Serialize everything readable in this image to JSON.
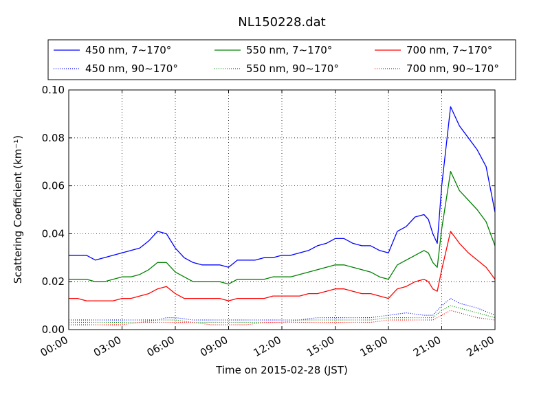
{
  "chart_data": {
    "type": "line",
    "title": "NL150228.dat",
    "xlabel": "Time on 2015-02-28 (JST)",
    "ylabel": "Scattering Coefficient (km⁻¹)",
    "xlim": [
      "00:00",
      "24:00"
    ],
    "ylim": [
      0.0,
      0.1
    ],
    "x_ticks": [
      "00:00",
      "03:00",
      "06:00",
      "09:00",
      "12:00",
      "15:00",
      "18:00",
      "21:00",
      "24:00"
    ],
    "y_ticks": [
      "0.00",
      "0.02",
      "0.04",
      "0.06",
      "0.08",
      "0.10"
    ],
    "grid": true,
    "legend_position": "top, above plot, 3 columns",
    "series": [
      {
        "name": "450 nm, 7∼170°",
        "color": "#0000ff",
        "style": "solid",
        "x": [
          "00:00",
          "00:30",
          "01:00",
          "01:30",
          "02:00",
          "02:30",
          "03:00",
          "03:30",
          "04:00",
          "04:30",
          "05:00",
          "05:30",
          "06:00",
          "06:30",
          "07:00",
          "07:30",
          "08:00",
          "08:30",
          "09:00",
          "09:30",
          "10:00",
          "10:30",
          "11:00",
          "11:30",
          "12:00",
          "12:30",
          "13:00",
          "13:30",
          "14:00",
          "14:30",
          "15:00",
          "15:30",
          "16:00",
          "16:30",
          "17:00",
          "17:30",
          "18:00",
          "18:30",
          "19:00",
          "19:30",
          "20:00",
          "20:15",
          "20:30",
          "20:45",
          "21:00",
          "21:30",
          "22:00",
          "22:30",
          "23:00",
          "23:30",
          "24:00"
        ],
        "y": [
          0.031,
          0.031,
          0.031,
          0.029,
          0.03,
          0.031,
          0.032,
          0.033,
          0.034,
          0.037,
          0.041,
          0.04,
          0.034,
          0.03,
          0.028,
          0.027,
          0.027,
          0.027,
          0.026,
          0.029,
          0.029,
          0.029,
          0.03,
          0.03,
          0.031,
          0.031,
          0.032,
          0.033,
          0.035,
          0.036,
          0.038,
          0.038,
          0.036,
          0.035,
          0.035,
          0.033,
          0.032,
          0.041,
          0.043,
          0.047,
          0.048,
          0.046,
          0.04,
          0.036,
          0.06,
          0.093,
          0.085,
          0.08,
          0.075,
          0.068,
          0.049
        ]
      },
      {
        "name": "550 nm, 7∼170°",
        "color": "#008000",
        "style": "solid",
        "x": [
          "00:00",
          "00:30",
          "01:00",
          "01:30",
          "02:00",
          "02:30",
          "03:00",
          "03:30",
          "04:00",
          "04:30",
          "05:00",
          "05:30",
          "06:00",
          "06:30",
          "07:00",
          "07:30",
          "08:00",
          "08:30",
          "09:00",
          "09:30",
          "10:00",
          "10:30",
          "11:00",
          "11:30",
          "12:00",
          "12:30",
          "13:00",
          "13:30",
          "14:00",
          "14:30",
          "15:00",
          "15:30",
          "16:00",
          "16:30",
          "17:00",
          "17:30",
          "18:00",
          "18:30",
          "19:00",
          "19:30",
          "20:00",
          "20:15",
          "20:30",
          "20:45",
          "21:00",
          "21:30",
          "22:00",
          "22:30",
          "23:00",
          "23:30",
          "24:00"
        ],
        "y": [
          0.021,
          0.021,
          0.021,
          0.02,
          0.02,
          0.021,
          0.022,
          0.022,
          0.023,
          0.025,
          0.028,
          0.028,
          0.024,
          0.022,
          0.02,
          0.02,
          0.02,
          0.02,
          0.019,
          0.021,
          0.021,
          0.021,
          0.021,
          0.022,
          0.022,
          0.022,
          0.023,
          0.024,
          0.025,
          0.026,
          0.027,
          0.027,
          0.026,
          0.025,
          0.024,
          0.022,
          0.021,
          0.027,
          0.029,
          0.031,
          0.033,
          0.032,
          0.028,
          0.026,
          0.042,
          0.066,
          0.058,
          0.054,
          0.05,
          0.045,
          0.035
        ]
      },
      {
        "name": "700 nm, 7∼170°",
        "color": "#ff0000",
        "style": "solid",
        "x": [
          "00:00",
          "00:30",
          "01:00",
          "01:30",
          "02:00",
          "02:30",
          "03:00",
          "03:30",
          "04:00",
          "04:30",
          "05:00",
          "05:30",
          "06:00",
          "06:30",
          "07:00",
          "07:30",
          "08:00",
          "08:30",
          "09:00",
          "09:30",
          "10:00",
          "10:30",
          "11:00",
          "11:30",
          "12:00",
          "12:30",
          "13:00",
          "13:30",
          "14:00",
          "14:30",
          "15:00",
          "15:30",
          "16:00",
          "16:30",
          "17:00",
          "17:30",
          "18:00",
          "18:30",
          "19:00",
          "19:30",
          "20:00",
          "20:15",
          "20:30",
          "20:45",
          "21:00",
          "21:30",
          "22:00",
          "22:30",
          "23:00",
          "23:30",
          "24:00"
        ],
        "y": [
          0.013,
          0.013,
          0.012,
          0.012,
          0.012,
          0.012,
          0.013,
          0.013,
          0.014,
          0.015,
          0.017,
          0.018,
          0.015,
          0.013,
          0.013,
          0.013,
          0.013,
          0.013,
          0.012,
          0.013,
          0.013,
          0.013,
          0.013,
          0.014,
          0.014,
          0.014,
          0.014,
          0.015,
          0.015,
          0.016,
          0.017,
          0.017,
          0.016,
          0.015,
          0.015,
          0.014,
          0.013,
          0.017,
          0.018,
          0.02,
          0.021,
          0.02,
          0.017,
          0.016,
          0.025,
          0.041,
          0.036,
          0.032,
          0.029,
          0.026,
          0.021
        ]
      },
      {
        "name": "450 nm, 90∼170°",
        "color": "#0000ff",
        "style": "dotted",
        "x": [
          "00:00",
          "01:00",
          "02:00",
          "03:00",
          "04:00",
          "05:00",
          "05:30",
          "06:00",
          "07:00",
          "08:00",
          "09:00",
          "10:00",
          "11:00",
          "12:00",
          "13:00",
          "14:00",
          "15:00",
          "16:00",
          "17:00",
          "18:00",
          "19:00",
          "20:00",
          "20:30",
          "21:00",
          "21:30",
          "22:00",
          "23:00",
          "24:00"
        ],
        "y": [
          0.004,
          0.004,
          0.004,
          0.004,
          0.004,
          0.004,
          0.005,
          0.005,
          0.004,
          0.004,
          0.004,
          0.004,
          0.004,
          0.004,
          0.004,
          0.005,
          0.005,
          0.005,
          0.005,
          0.006,
          0.007,
          0.006,
          0.006,
          0.01,
          0.013,
          0.011,
          0.009,
          0.006
        ]
      },
      {
        "name": "550 nm, 90∼170°",
        "color": "#008000",
        "style": "dotted",
        "x": [
          "00:00",
          "01:00",
          "02:00",
          "03:00",
          "04:00",
          "05:00",
          "05:30",
          "06:00",
          "07:00",
          "08:00",
          "09:00",
          "10:00",
          "11:00",
          "12:00",
          "13:00",
          "14:00",
          "15:00",
          "16:00",
          "17:00",
          "18:00",
          "19:00",
          "20:00",
          "20:30",
          "21:00",
          "21:30",
          "22:00",
          "23:00",
          "24:00"
        ],
        "y": [
          0.003,
          0.003,
          0.003,
          0.003,
          0.003,
          0.004,
          0.004,
          0.004,
          0.003,
          0.003,
          0.003,
          0.003,
          0.003,
          0.003,
          0.004,
          0.004,
          0.004,
          0.004,
          0.004,
          0.005,
          0.005,
          0.005,
          0.005,
          0.008,
          0.01,
          0.009,
          0.007,
          0.005
        ]
      },
      {
        "name": "700 nm, 90∼170°",
        "color": "#ff0000",
        "style": "dotted",
        "x": [
          "00:00",
          "01:00",
          "02:00",
          "03:00",
          "04:00",
          "05:00",
          "05:30",
          "06:00",
          "07:00",
          "08:00",
          "09:00",
          "10:00",
          "11:00",
          "12:00",
          "13:00",
          "14:00",
          "15:00",
          "16:00",
          "17:00",
          "18:00",
          "19:00",
          "20:00",
          "20:30",
          "21:00",
          "21:30",
          "22:00",
          "23:00",
          "24:00"
        ],
        "y": [
          0.002,
          0.002,
          0.002,
          0.002,
          0.003,
          0.003,
          0.003,
          0.003,
          0.003,
          0.002,
          0.002,
          0.002,
          0.003,
          0.003,
          0.003,
          0.003,
          0.003,
          0.003,
          0.003,
          0.004,
          0.004,
          0.004,
          0.004,
          0.006,
          0.008,
          0.007,
          0.005,
          0.004
        ]
      }
    ]
  }
}
